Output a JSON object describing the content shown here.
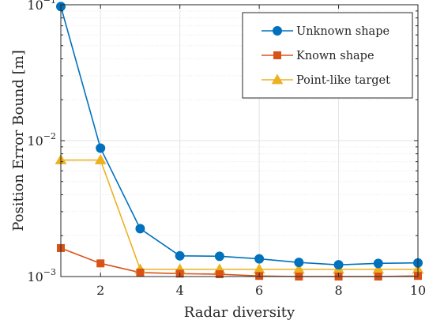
{
  "chart_data": {
    "type": "line",
    "xlabel": "Radar diversity",
    "ylabel": "Position Error Bound [m]",
    "xlim": [
      1,
      10
    ],
    "ylim": [
      0.001,
      0.1
    ],
    "yscale": "log",
    "grid": true,
    "legend_position": "top-right",
    "x_ticks": [
      2,
      4,
      6,
      8,
      10
    ],
    "x_tick_labels": [
      "2",
      "4",
      "6",
      "8",
      "10"
    ],
    "y_ticks": [
      {
        "value": 0.001,
        "base": "10",
        "exp": "−3"
      },
      {
        "value": 0.01,
        "base": "10",
        "exp": "−2"
      },
      {
        "value": 0.1,
        "base": "10",
        "exp": "−1"
      }
    ],
    "x": [
      1,
      2,
      3,
      4,
      5,
      6,
      7,
      8,
      9,
      10
    ],
    "series": [
      {
        "name": "Unknown shape",
        "color": "#0072BD",
        "marker": "circle",
        "values": [
          0.097,
          0.0088,
          0.00225,
          0.00142,
          0.00141,
          0.00135,
          0.00127,
          0.00122,
          0.00125,
          0.00126
        ]
      },
      {
        "name": "Known shape",
        "color": "#D95319",
        "marker": "square",
        "values": [
          0.00162,
          0.00125,
          0.00107,
          0.00105,
          0.00104,
          0.00101,
          0.001,
          0.001,
          0.001,
          0.00101
        ]
      },
      {
        "name": "Point-like target",
        "color": "#EDB120",
        "marker": "triangle",
        "values": [
          0.0072,
          0.0072,
          0.00113,
          0.00113,
          0.00113,
          0.00113,
          0.00113,
          0.00113,
          0.00113,
          0.00113
        ]
      }
    ]
  }
}
